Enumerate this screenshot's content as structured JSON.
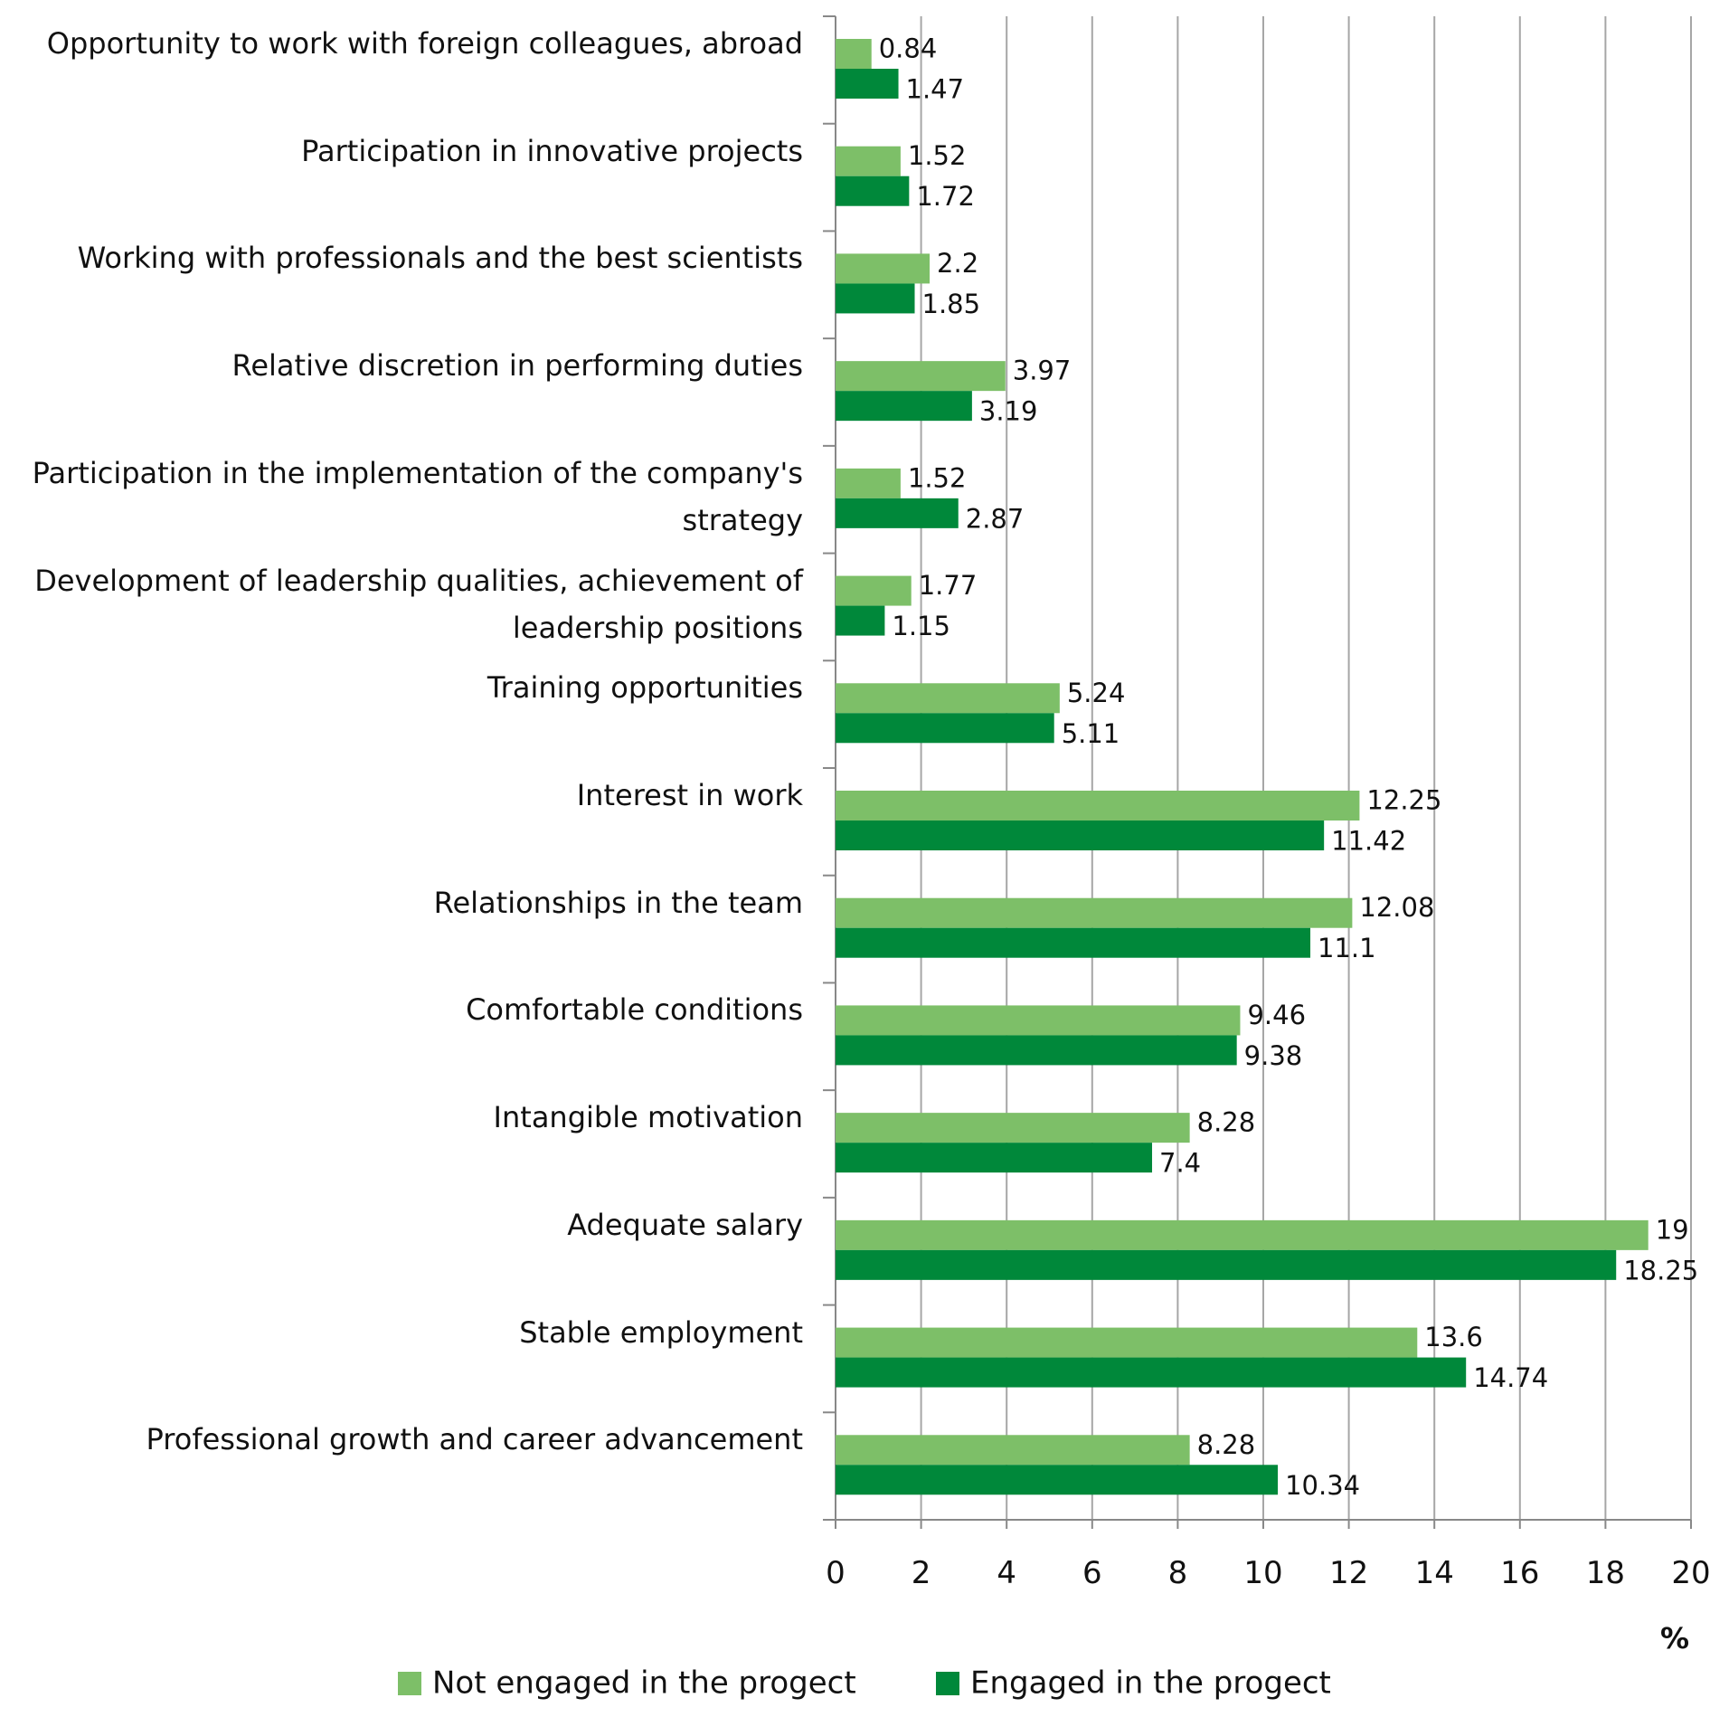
{
  "chart_data": {
    "type": "barh",
    "categories": [
      "Opportunity to work with foreign colleagues, abroad",
      "Participation in innovative projects",
      "Working with professionals and the best scientists",
      "Relative discretion in performing duties",
      "Participation in the implementation of the company's strategy",
      "Development of leadership qualities, achievement of leadership positions",
      "Training opportunities",
      "Interest in work",
      "Relationships in the team",
      "Comfortable conditions",
      "Intangible motivation",
      "Adequate salary",
      "Stable employment",
      "Professional growth and career advancement"
    ],
    "series": [
      {
        "name": "Not engaged in the progect",
        "color": "#7dbf68",
        "values": [
          0.84,
          1.52,
          2.2,
          3.97,
          1.52,
          1.77,
          5.24,
          12.25,
          12.08,
          9.46,
          8.28,
          19,
          13.6,
          8.28
        ]
      },
      {
        "name": "Engaged in the progect",
        "color": "#00883a",
        "values": [
          1.47,
          1.72,
          1.85,
          3.19,
          2.87,
          1.15,
          5.11,
          11.42,
          11.1,
          9.38,
          7.4,
          18.25,
          14.74,
          10.34
        ]
      }
    ],
    "xlabel": "%",
    "xlim": [
      0,
      20
    ],
    "xticks": [
      0,
      2,
      4,
      6,
      8,
      10,
      12,
      14,
      16,
      18,
      20
    ],
    "grid": true
  }
}
